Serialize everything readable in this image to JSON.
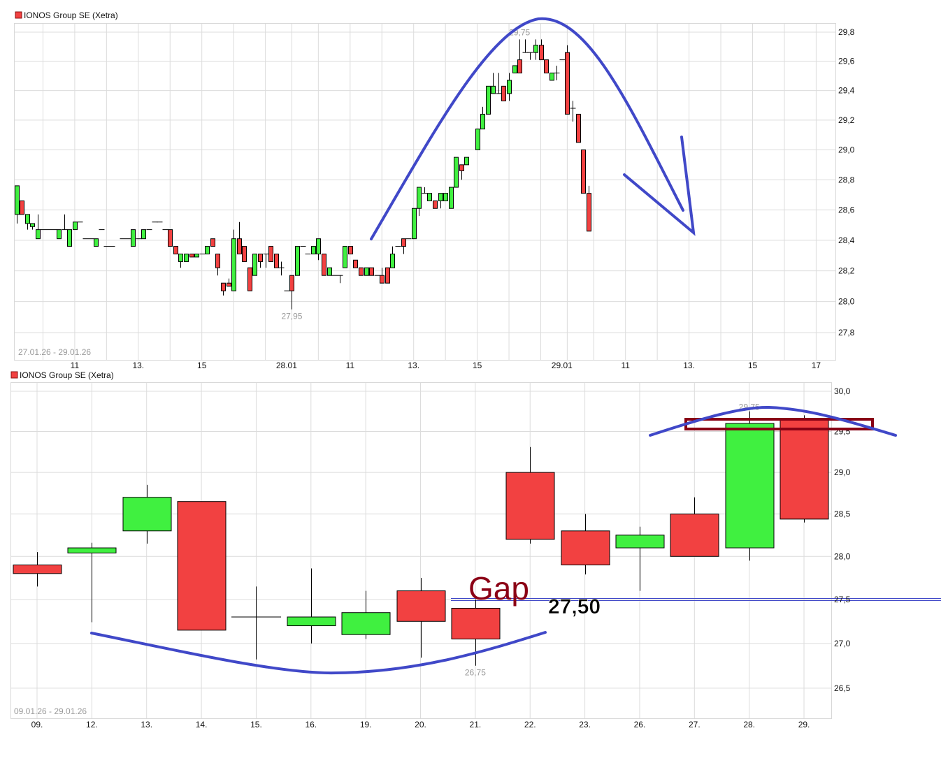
{
  "colors": {
    "up": "#40f040",
    "down": "#f24141",
    "annotation": "#4048c8",
    "box": "#880015",
    "gap_text": "#8b0015"
  },
  "chart_data": [
    {
      "type": "candlestick",
      "legend": "IONOS Group SE (Xetra)",
      "date_range": "27.01.26 - 29.01.26",
      "scale": "log",
      "ylim": [
        27.65,
        29.86
      ],
      "y_ticks": [
        "29,8",
        "29,6",
        "29,4",
        "29,2",
        "29,0",
        "28,8",
        "28,6",
        "28,4",
        "28,2",
        "28,0",
        "27,8"
      ],
      "y_tick_values": [
        29.8,
        29.6,
        29.4,
        29.2,
        29.0,
        28.8,
        28.6,
        28.4,
        28.2,
        28.0,
        27.8
      ],
      "x_ticks": [
        {
          "label": "11",
          "day": 0,
          "time": "11:00"
        },
        {
          "label": "13.",
          "day": 0,
          "time": "13:00"
        },
        {
          "label": "15",
          "day": 0,
          "time": "15:00"
        },
        {
          "label": "28.01",
          "day": 1,
          "time": "09:00"
        },
        {
          "label": "11",
          "day": 1,
          "time": "11:00"
        },
        {
          "label": "13.",
          "day": 1,
          "time": "13:00"
        },
        {
          "label": "15",
          "day": 1,
          "time": "15:00"
        },
        {
          "label": "29.01",
          "day": 2,
          "time": "09:00"
        },
        {
          "label": "11",
          "day": 2,
          "time": "11:00"
        },
        {
          "label": "13.",
          "day": 2,
          "time": "13:00"
        },
        {
          "label": "15",
          "day": 2,
          "time": "15:00"
        },
        {
          "label": "17",
          "day": 2,
          "time": "17:00"
        }
      ],
      "high_label": {
        "text": "29,75",
        "day": 1,
        "time": "16:20",
        "value": 29.75
      },
      "low_label": {
        "text": "27,95",
        "day": 1,
        "time": "09:10",
        "value": 27.95
      },
      "days": [
        "27.01",
        "28.01",
        "29.01"
      ],
      "candles": [
        [
          [
            "09:10",
            28.57,
            28.76,
            28.51,
            28.76
          ],
          [
            "09:20",
            28.66,
            28.66,
            28.57,
            28.57
          ],
          [
            "09:30",
            28.51,
            28.57,
            28.47,
            28.57
          ],
          [
            "09:40",
            28.49,
            28.51,
            28.47,
            28.51
          ],
          [
            "09:50",
            28.41,
            28.57,
            28.41,
            28.47
          ],
          [
            "10:00",
            28.47,
            28.47,
            28.47,
            28.47
          ],
          [
            "10:10",
            28.47,
            28.47,
            28.47,
            28.47
          ],
          [
            "10:20",
            28.47,
            28.47,
            28.47,
            28.47
          ],
          [
            "10:30",
            28.41,
            28.47,
            28.41,
            28.47
          ],
          [
            "10:40",
            28.47,
            28.57,
            28.47,
            28.47
          ],
          [
            "10:50",
            28.36,
            28.47,
            28.36,
            28.47
          ],
          [
            "11:00",
            28.47,
            28.52,
            28.47,
            28.52
          ],
          [
            "11:10",
            28.52,
            28.52,
            28.52,
            28.52
          ],
          [
            "11:20",
            28.41,
            28.41,
            28.41,
            28.41
          ],
          [
            "11:30",
            28.41,
            28.41,
            28.41,
            28.41
          ],
          [
            "11:40",
            28.36,
            28.41,
            28.36,
            28.41
          ],
          [
            "11:50",
            28.47,
            28.47,
            28.47,
            28.47
          ],
          [
            "12:00",
            28.36,
            28.36,
            28.36,
            28.36
          ],
          [
            "12:10",
            28.36,
            28.36,
            28.36,
            28.36
          ],
          [
            "12:30",
            28.41,
            28.41,
            28.41,
            28.41
          ],
          [
            "12:40",
            28.41,
            28.41,
            28.41,
            28.41
          ],
          [
            "12:50",
            28.36,
            28.47,
            28.36,
            28.47
          ],
          [
            "13:00",
            28.41,
            28.41,
            28.41,
            28.41
          ],
          [
            "13:10",
            28.41,
            28.47,
            28.41,
            28.47
          ],
          [
            "13:20",
            28.47,
            28.47,
            28.47,
            28.47
          ],
          [
            "13:30",
            28.52,
            28.52,
            28.52,
            28.52
          ],
          [
            "13:40",
            28.52,
            28.52,
            28.52,
            28.52
          ],
          [
            "13:50",
            28.47,
            28.47,
            28.47,
            28.47
          ],
          [
            "14:00",
            28.47,
            28.47,
            28.36,
            28.36
          ],
          [
            "14:10",
            28.36,
            28.36,
            28.31,
            28.31
          ],
          [
            "14:20",
            28.26,
            28.31,
            28.22,
            28.31
          ],
          [
            "14:30",
            28.26,
            28.31,
            28.26,
            28.31
          ],
          [
            "14:40",
            28.31,
            28.31,
            28.29,
            28.29
          ],
          [
            "14:50",
            28.29,
            28.31,
            28.29,
            28.31
          ],
          [
            "15:00",
            28.31,
            28.31,
            28.31,
            28.31
          ],
          [
            "15:10",
            28.31,
            28.36,
            28.31,
            28.36
          ],
          [
            "15:20",
            28.41,
            28.41,
            28.36,
            28.36
          ],
          [
            "15:30",
            28.31,
            28.31,
            28.17,
            28.22
          ],
          [
            "15:40",
            28.12,
            28.12,
            28.04,
            28.07
          ],
          [
            "15:50",
            28.12,
            28.15,
            28.1,
            28.1
          ],
          [
            "16:00",
            28.07,
            28.47,
            28.07,
            28.41
          ],
          [
            "16:10",
            28.41,
            28.52,
            28.31,
            28.31
          ],
          [
            "16:20",
            28.36,
            28.36,
            28.26,
            28.26
          ],
          [
            "16:30",
            28.22,
            28.22,
            28.07,
            28.07
          ],
          [
            "16:40",
            28.17,
            28.31,
            28.17,
            28.31
          ],
          [
            "16:50",
            28.31,
            28.31,
            28.22,
            28.26
          ],
          [
            "17:00",
            28.31,
            28.31,
            28.22,
            28.31
          ],
          [
            "17:10",
            28.36,
            28.36,
            28.26,
            28.26
          ],
          [
            "17:20",
            28.31,
            28.31,
            28.22,
            28.22
          ],
          [
            "17:30",
            28.22,
            28.26,
            28.17,
            28.22
          ]
        ],
        [
          [
            "09:00",
            28.07,
            28.07,
            28.07,
            28.07
          ],
          [
            "09:10",
            28.17,
            28.17,
            27.95,
            28.07
          ],
          [
            "09:20",
            28.17,
            28.36,
            28.17,
            28.36
          ],
          [
            "09:30",
            28.36,
            28.36,
            28.36,
            28.36
          ],
          [
            "09:40",
            28.31,
            28.31,
            28.31,
            28.31
          ],
          [
            "09:50",
            28.31,
            28.36,
            28.31,
            28.36
          ],
          [
            "10:00",
            28.31,
            28.41,
            28.27,
            28.41
          ],
          [
            "10:10",
            28.31,
            28.31,
            28.17,
            28.17
          ],
          [
            "10:20",
            28.17,
            28.22,
            28.17,
            28.22
          ],
          [
            "10:30",
            28.17,
            28.17,
            28.17,
            28.17
          ],
          [
            "10:40",
            28.17,
            28.17,
            28.12,
            28.17
          ],
          [
            "10:50",
            28.22,
            28.36,
            28.22,
            28.36
          ],
          [
            "11:00",
            28.36,
            28.36,
            28.31,
            28.31
          ],
          [
            "11:10",
            28.27,
            28.27,
            28.22,
            28.22
          ],
          [
            "11:20",
            28.22,
            28.22,
            28.17,
            28.17
          ],
          [
            "11:30",
            28.17,
            28.22,
            28.17,
            28.22
          ],
          [
            "11:40",
            28.22,
            28.22,
            28.17,
            28.17
          ],
          [
            "11:50",
            28.17,
            28.17,
            28.17,
            28.17
          ],
          [
            "12:00",
            28.17,
            28.22,
            28.12,
            28.12
          ],
          [
            "12:10",
            28.22,
            28.22,
            28.12,
            28.12
          ],
          [
            "12:20",
            28.22,
            28.36,
            28.22,
            28.31
          ],
          [
            "12:30",
            28.36,
            28.36,
            28.36,
            28.36
          ],
          [
            "12:40",
            28.41,
            28.41,
            28.31,
            28.36
          ],
          [
            "12:50",
            28.41,
            28.41,
            28.41,
            28.41
          ],
          [
            "13:00",
            28.41,
            28.61,
            28.41,
            28.61
          ],
          [
            "13:10",
            28.61,
            28.75,
            28.56,
            28.75
          ],
          [
            "13:20",
            28.71,
            28.75,
            28.71,
            28.71
          ],
          [
            "13:30",
            28.66,
            28.71,
            28.66,
            28.71
          ],
          [
            "13:40",
            28.66,
            28.66,
            28.61,
            28.61
          ],
          [
            "13:50",
            28.66,
            28.71,
            28.61,
            28.71
          ],
          [
            "14:00",
            28.66,
            28.71,
            28.66,
            28.71
          ],
          [
            "14:10",
            28.61,
            28.75,
            28.61,
            28.75
          ],
          [
            "14:20",
            28.75,
            28.95,
            28.75,
            28.95
          ],
          [
            "14:30",
            28.9,
            28.9,
            28.8,
            28.86
          ],
          [
            "14:40",
            28.9,
            28.95,
            28.9,
            28.95
          ],
          [
            "15:00",
            29.0,
            29.14,
            29.0,
            29.14
          ],
          [
            "15:10",
            29.14,
            29.29,
            29.14,
            29.24
          ],
          [
            "15:20",
            29.24,
            29.43,
            29.24,
            29.43
          ],
          [
            "15:30",
            29.38,
            29.52,
            29.38,
            29.43
          ],
          [
            "15:40",
            29.38,
            29.52,
            29.38,
            29.38
          ],
          [
            "15:50",
            29.43,
            29.43,
            29.33,
            29.33
          ],
          [
            "16:00",
            29.38,
            29.52,
            29.33,
            29.47
          ],
          [
            "16:10",
            29.52,
            29.57,
            29.52,
            29.57
          ],
          [
            "16:20",
            29.61,
            29.75,
            29.52,
            29.52
          ],
          [
            "16:30",
            29.66,
            29.75,
            29.66,
            29.66
          ],
          [
            "16:40",
            29.66,
            29.66,
            29.61,
            29.66
          ],
          [
            "16:50",
            29.66,
            29.75,
            29.61,
            29.71
          ],
          [
            "17:00",
            29.71,
            29.75,
            29.61,
            29.61
          ],
          [
            "17:10",
            29.61,
            29.61,
            29.52,
            29.52
          ],
          [
            "17:20",
            29.47,
            29.52,
            29.47,
            29.52
          ],
          [
            "17:30",
            29.52,
            29.57,
            29.47,
            29.52
          ]
        ],
        [
          [
            "09:00",
            29.61,
            29.61,
            29.61,
            29.61
          ],
          [
            "09:10",
            29.66,
            29.71,
            29.24,
            29.24
          ],
          [
            "09:20",
            29.28,
            29.33,
            29.19,
            29.28
          ],
          [
            "09:30",
            29.24,
            29.24,
            29.05,
            29.05
          ],
          [
            "09:40",
            29.0,
            29.0,
            28.71,
            28.71
          ],
          [
            "09:50",
            28.71,
            28.76,
            28.46,
            28.46
          ]
        ]
      ]
    },
    {
      "type": "candlestick",
      "legend": "IONOS Group SE (Xetra)",
      "date_range": "09.01.26 - 29.01.26",
      "scale": "log",
      "ylim": [
        26.2,
        30.1
      ],
      "y_ticks": [
        "30,0",
        "29,5",
        "29,0",
        "28,5",
        "28,0",
        "27,5",
        "27,0",
        "26,5"
      ],
      "y_tick_values": [
        30.0,
        29.5,
        29.0,
        28.5,
        28.0,
        27.5,
        27.0,
        26.5
      ],
      "categories": [
        "09.",
        "12.",
        "13.",
        "14.",
        "15.",
        "16.",
        "19.",
        "20.",
        "21.",
        "22.",
        "23.",
        "26.",
        "27.",
        "28.",
        "29."
      ],
      "ohlc": [
        [
          27.9,
          28.05,
          27.65,
          27.8
        ],
        [
          28.04,
          28.16,
          27.24,
          28.1
        ],
        [
          28.3,
          28.85,
          28.15,
          28.7
        ],
        [
          28.65,
          28.65,
          27.15,
          27.15
        ],
        [
          27.3,
          27.65,
          26.82,
          27.3
        ],
        [
          27.2,
          27.86,
          27.0,
          27.3
        ],
        [
          27.1,
          27.6,
          27.05,
          27.35
        ],
        [
          27.6,
          27.75,
          26.84,
          27.25
        ],
        [
          27.4,
          27.5,
          26.75,
          27.05
        ],
        [
          29.0,
          29.31,
          28.15,
          28.2
        ],
        [
          28.3,
          28.5,
          27.79,
          27.9
        ],
        [
          28.1,
          28.35,
          27.6,
          28.25
        ],
        [
          28.5,
          28.7,
          28.0,
          28.0
        ],
        [
          28.1,
          29.75,
          27.95,
          29.6
        ],
        [
          29.65,
          29.7,
          28.4,
          28.44
        ]
      ],
      "high_label": {
        "text": "29,75",
        "index": 13,
        "value": 29.75
      },
      "low_label": {
        "text": "26,75",
        "index": 8,
        "value": 26.75
      },
      "annotations": {
        "gap_text": "Gap",
        "level_text": "27,50",
        "level_value": 27.5
      }
    }
  ]
}
